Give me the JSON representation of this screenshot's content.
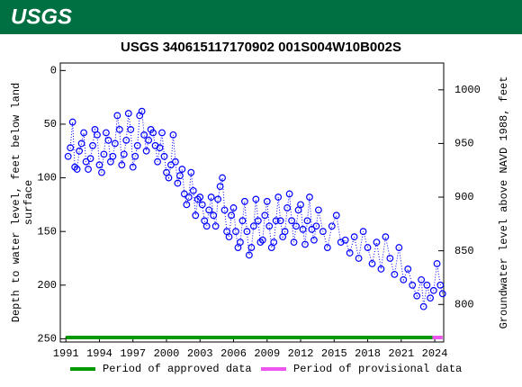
{
  "header": {
    "logo": "USGS"
  },
  "chart_data": {
    "type": "scatter",
    "title": "USGS 340615117170902 001S004W10B002S",
    "ylabel": "Depth to water level, feet below land surface",
    "y2label": "Groundwater level above NAVD 1988, feet",
    "xlim": [
      1990.5,
      2024.8
    ],
    "xticks": [
      1991,
      1994,
      1997,
      2000,
      2003,
      2006,
      2009,
      2012,
      2015,
      2018,
      2021,
      2024
    ],
    "ylim": [
      -7,
      253
    ],
    "y_inverted": true,
    "yticks": [
      0,
      50,
      100,
      150,
      200,
      250
    ],
    "y2lim": [
      1025,
      765
    ],
    "y2ticks": [
      1000,
      950,
      900,
      850,
      800
    ],
    "series": [
      {
        "color": "#0000ff",
        "x": [
          1991.2,
          1991.4,
          1991.6,
          1991.8,
          1992.0,
          1992.2,
          1992.4,
          1992.6,
          1992.8,
          1993.0,
          1993.2,
          1993.4,
          1993.6,
          1993.8,
          1994.0,
          1994.2,
          1994.4,
          1994.6,
          1994.8,
          1995.0,
          1995.2,
          1995.4,
          1995.6,
          1995.8,
          1996.0,
          1996.2,
          1996.4,
          1996.6,
          1996.8,
          1997.0,
          1997.2,
          1997.4,
          1997.6,
          1997.8,
          1998.0,
          1998.2,
          1998.4,
          1998.6,
          1998.8,
          1999.0,
          1999.2,
          1999.4,
          1999.6,
          1999.8,
          2000.0,
          2000.2,
          2000.4,
          2000.6,
          2000.8,
          2001.0,
          2001.2,
          2001.4,
          2001.6,
          2001.8,
          2002.0,
          2002.2,
          2002.4,
          2002.6,
          2002.8,
          2003.0,
          2003.2,
          2003.4,
          2003.6,
          2003.8,
          2004.0,
          2004.2,
          2004.4,
          2004.6,
          2004.8,
          2005.0,
          2005.2,
          2005.4,
          2005.6,
          2005.8,
          2006.0,
          2006.2,
          2006.4,
          2006.6,
          2006.8,
          2007.0,
          2007.2,
          2007.4,
          2007.6,
          2007.8,
          2008.0,
          2008.2,
          2008.4,
          2008.6,
          2008.8,
          2009.0,
          2009.2,
          2009.4,
          2009.6,
          2009.8,
          2010.0,
          2010.2,
          2010.4,
          2010.6,
          2010.8,
          2011.0,
          2011.2,
          2011.4,
          2011.6,
          2011.8,
          2012.0,
          2012.2,
          2012.4,
          2012.6,
          2012.8,
          2013.0,
          2013.2,
          2013.4,
          2013.6,
          2014.0,
          2014.4,
          2014.8,
          2015.2,
          2015.6,
          2016.0,
          2016.4,
          2016.8,
          2017.2,
          2017.6,
          2018.0,
          2018.4,
          2018.8,
          2019.2,
          2019.6,
          2020.0,
          2020.4,
          2020.8,
          2021.2,
          2021.6,
          2022.0,
          2022.4,
          2022.8,
          2023.0,
          2023.3,
          2023.6,
          2023.9,
          2024.2,
          2024.5,
          2024.7
        ],
        "values": [
          80,
          72,
          48,
          90,
          92,
          75,
          68,
          58,
          85,
          92,
          82,
          70,
          55,
          60,
          88,
          95,
          78,
          58,
          65,
          85,
          80,
          68,
          42,
          55,
          88,
          78,
          65,
          40,
          55,
          90,
          80,
          70,
          42,
          38,
          60,
          75,
          65,
          55,
          58,
          70,
          85,
          72,
          58,
          80,
          95,
          100,
          88,
          60,
          85,
          105,
          98,
          92,
          115,
          125,
          118,
          95,
          112,
          135,
          120,
          118,
          125,
          140,
          145,
          130,
          118,
          135,
          145,
          120,
          108,
          100,
          130,
          150,
          155,
          135,
          128,
          150,
          165,
          160,
          140,
          122,
          150,
          172,
          165,
          145,
          120,
          140,
          160,
          158,
          135,
          122,
          145,
          165,
          160,
          140,
          118,
          140,
          155,
          150,
          128,
          115,
          140,
          160,
          145,
          130,
          125,
          148,
          162,
          140,
          118,
          148,
          158,
          145,
          130,
          150,
          165,
          145,
          135,
          160,
          158,
          170,
          155,
          175,
          150,
          165,
          180,
          160,
          185,
          155,
          175,
          190,
          165,
          195,
          185,
          200,
          210,
          195,
          220,
          200,
          212,
          205,
          180,
          200,
          208
        ]
      }
    ],
    "periods": [
      {
        "name": "Period of approved data",
        "color": "#009900",
        "start": 1991,
        "end": 2023.8
      },
      {
        "name": "Period of provisional data",
        "color": "#ee55ee",
        "start": 2023.8,
        "end": 2024.7
      }
    ]
  }
}
